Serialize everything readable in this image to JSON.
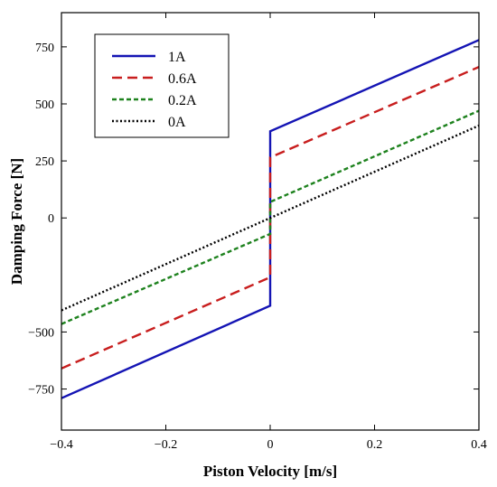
{
  "chart_data": {
    "type": "line",
    "title": "",
    "xlabel": "Piston Velocity [m/s]",
    "ylabel": "Damping Force [N]",
    "xlim": [
      -0.4,
      0.4
    ],
    "ylim": [
      -930,
      900
    ],
    "x_ticks": [
      -0.4,
      -0.2,
      0,
      0.2,
      0.4
    ],
    "x_tick_labels": [
      "−0.4",
      "−0.2",
      "0",
      "0.2",
      "0.4"
    ],
    "y_ticks": [
      750,
      500,
      250,
      0,
      -500,
      -750
    ],
    "y_tick_labels": [
      "750",
      "500",
      "250",
      "0",
      "−500",
      "−750"
    ],
    "grid": false,
    "legend_position": "top-left",
    "series": [
      {
        "name": "1A",
        "color": "#1414b4",
        "dash": "solid",
        "x": [
          -0.4,
          0,
          0,
          0.4
        ],
        "y": [
          -790,
          -385,
          380,
          780
        ]
      },
      {
        "name": "0.6A",
        "color": "#c81e1e",
        "dash": "long-dash",
        "x": [
          -0.4,
          0,
          0,
          0.4
        ],
        "y": [
          -660,
          -260,
          265,
          662
        ]
      },
      {
        "name": "0.2A",
        "color": "#1e821e",
        "dash": "short-dash",
        "x": [
          -0.4,
          0,
          0,
          0.4
        ],
        "y": [
          -465,
          -70,
          70,
          470
        ]
      },
      {
        "name": "0A",
        "color": "#000000",
        "dash": "dotted",
        "x": [
          -0.4,
          0.4
        ],
        "y": [
          -405,
          405
        ]
      }
    ]
  }
}
